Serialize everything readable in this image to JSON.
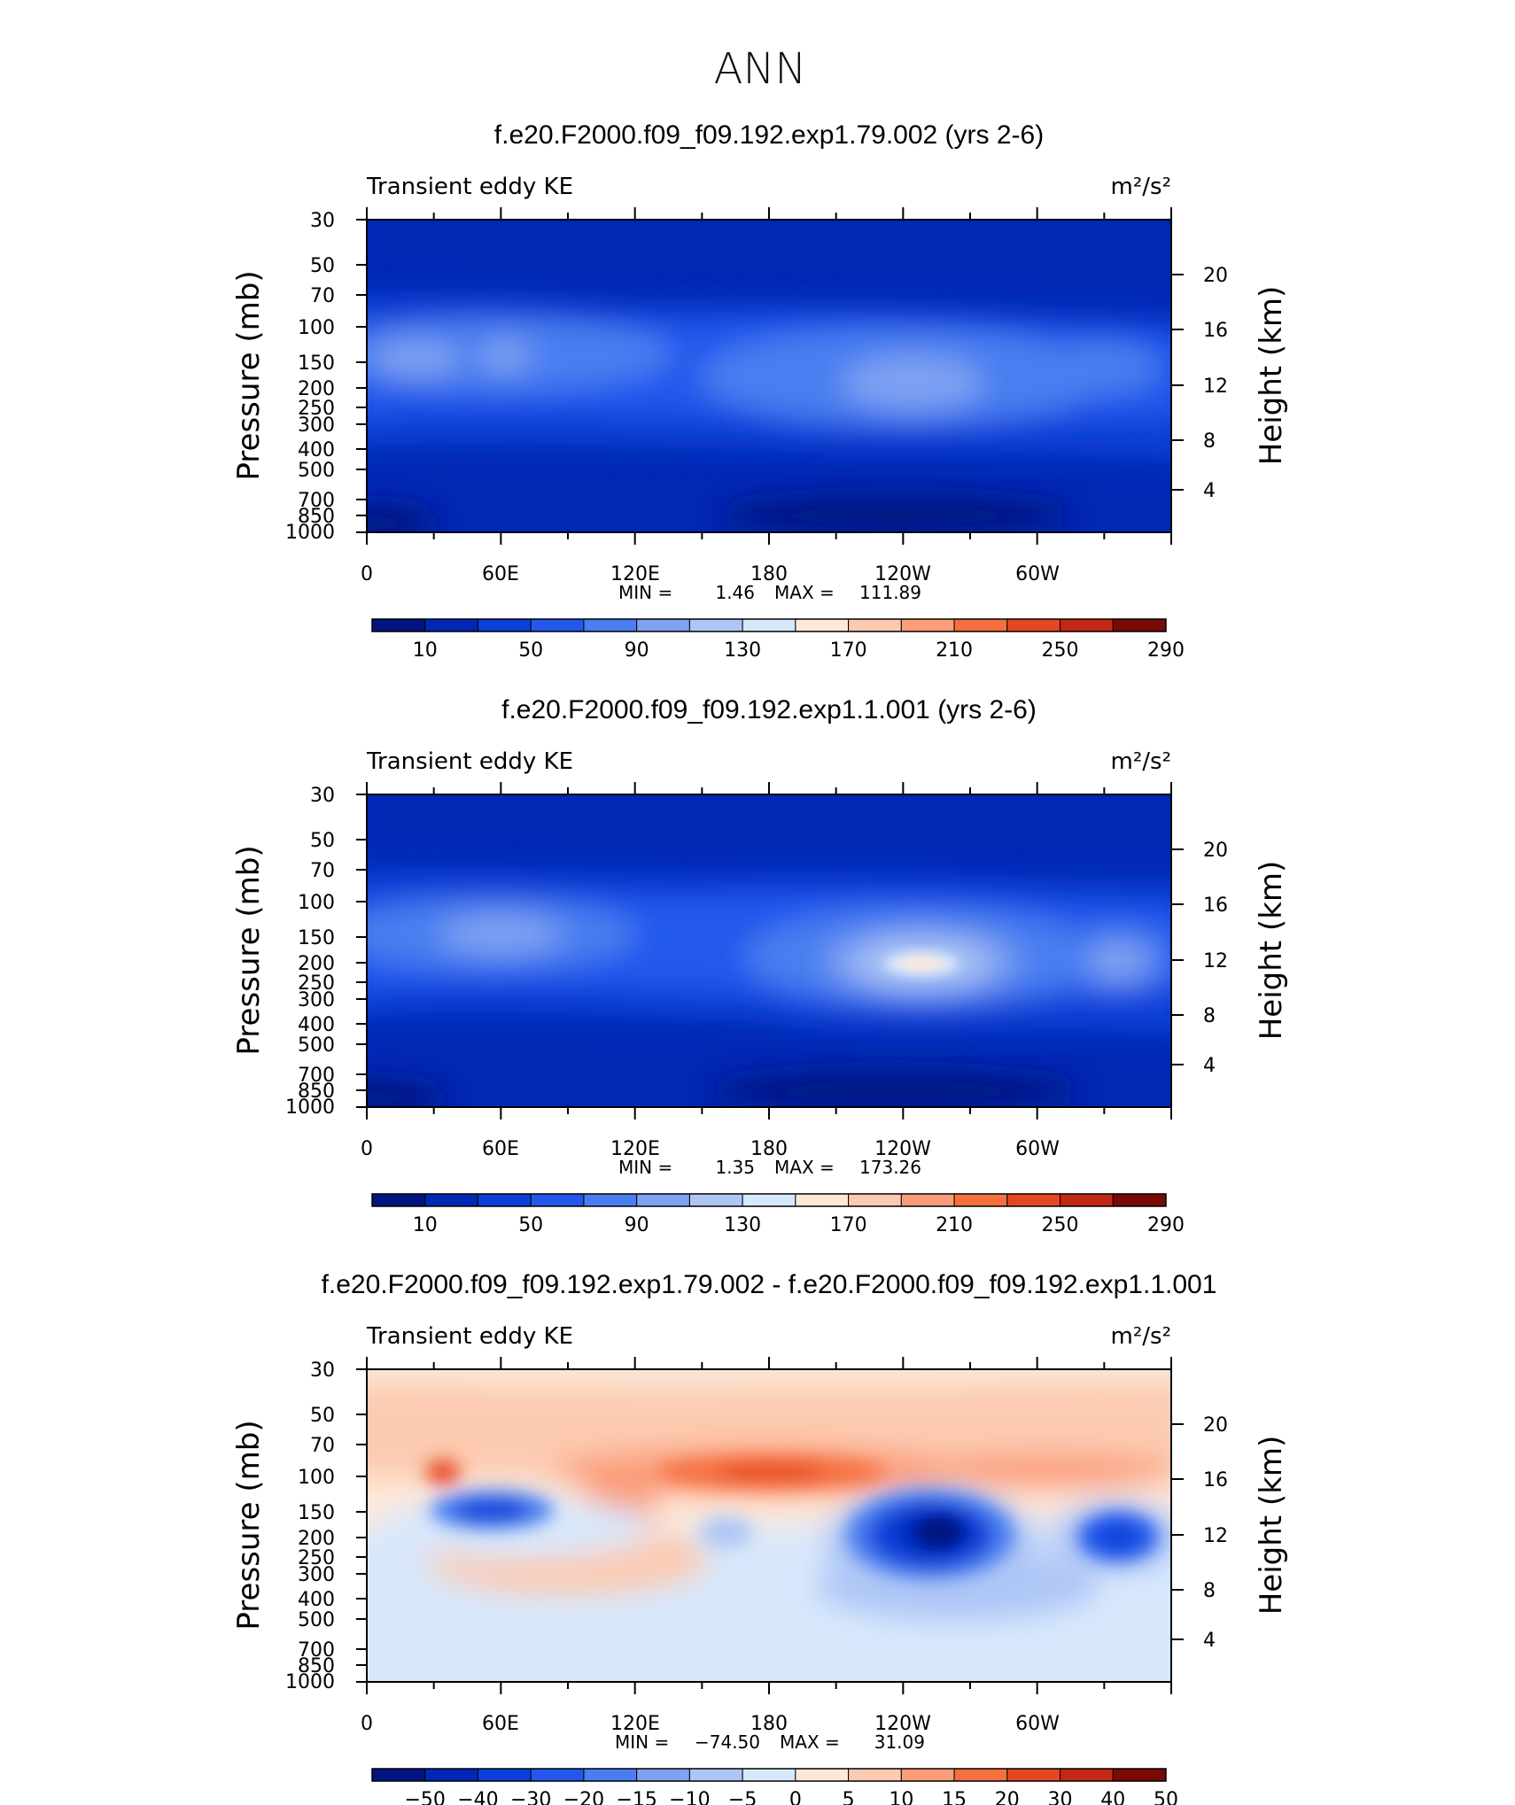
{
  "page_title": "ANN",
  "chart_data": [
    {
      "type": "heatmap",
      "title": "f.e20.F2000.f09_f09.192.exp1.79.002 (yrs 2-6)",
      "left_label": "Transient eddy KE",
      "units": "m²/s²",
      "ylabel": "Pressure (mb)",
      "ylabel_right": "Height (km)",
      "x_ticks": [
        "0",
        "60E",
        "120E",
        "180",
        "120W",
        "60W"
      ],
      "y_ticks": [
        "30",
        "50",
        "70",
        "100",
        "150",
        "200",
        "250",
        "300",
        "400",
        "500",
        "700",
        "850",
        "1000"
      ],
      "y_ticks_right": [
        "20",
        "16",
        "12",
        "8",
        "4"
      ],
      "stats": {
        "min_label": "MIN =",
        "min": "1.46",
        "max_label": "MAX =",
        "max": "111.89"
      },
      "colorbar": {
        "colors": [
          "#001580",
          "#0028b4",
          "#0c40d8",
          "#2458ec",
          "#4a7ef0",
          "#7fa2f2",
          "#aec6f6",
          "#d8e8fc",
          "#fee9d8",
          "#fccab0",
          "#fb9d79",
          "#f4703f",
          "#e54820",
          "#c32814",
          "#7a0a05"
        ],
        "labels": [
          "10",
          "50",
          "90",
          "130",
          "170",
          "210",
          "250",
          "290"
        ]
      }
    },
    {
      "type": "heatmap",
      "title": "f.e20.F2000.f09_f09.192.exp1.1.001 (yrs 2-6)",
      "left_label": "Transient eddy KE",
      "units": "m²/s²",
      "ylabel": "Pressure (mb)",
      "ylabel_right": "Height (km)",
      "x_ticks": [
        "0",
        "60E",
        "120E",
        "180",
        "120W",
        "60W"
      ],
      "y_ticks": [
        "30",
        "50",
        "70",
        "100",
        "150",
        "200",
        "250",
        "300",
        "400",
        "500",
        "700",
        "850",
        "1000"
      ],
      "y_ticks_right": [
        "20",
        "16",
        "12",
        "8",
        "4"
      ],
      "stats": {
        "min_label": "MIN =",
        "min": "1.35",
        "max_label": "MAX =",
        "max": "173.26"
      },
      "colorbar": {
        "colors": [
          "#001580",
          "#0028b4",
          "#0c40d8",
          "#2458ec",
          "#4a7ef0",
          "#7fa2f2",
          "#aec6f6",
          "#d8e8fc",
          "#fee9d8",
          "#fccab0",
          "#fb9d79",
          "#f4703f",
          "#e54820",
          "#c32814",
          "#7a0a05"
        ],
        "labels": [
          "10",
          "50",
          "90",
          "130",
          "170",
          "210",
          "250",
          "290"
        ]
      }
    },
    {
      "type": "heatmap",
      "title": "f.e20.F2000.f09_f09.192.exp1.79.002 - f.e20.F2000.f09_f09.192.exp1.1.001",
      "left_label": "Transient eddy KE",
      "units": "m²/s²",
      "ylabel": "Pressure (mb)",
      "ylabel_right": "Height (km)",
      "x_ticks": [
        "0",
        "60E",
        "120E",
        "180",
        "120W",
        "60W"
      ],
      "y_ticks": [
        "30",
        "50",
        "70",
        "100",
        "150",
        "200",
        "250",
        "300",
        "400",
        "500",
        "700",
        "850",
        "1000"
      ],
      "y_ticks_right": [
        "20",
        "16",
        "12",
        "8",
        "4"
      ],
      "stats": {
        "min_label": "MIN =",
        "min": "−74.50",
        "max_label": "MAX =",
        "max": "31.09"
      },
      "colorbar": {
        "colors": [
          "#001580",
          "#0028b4",
          "#0c40d8",
          "#2458ec",
          "#4a7ef0",
          "#7fa2f2",
          "#aec6f6",
          "#d8e8fc",
          "#fee9d8",
          "#fccab0",
          "#fb9d79",
          "#f4703f",
          "#e54820",
          "#c32814",
          "#7a0a05"
        ],
        "labels": [
          "−50",
          "−40",
          "−30",
          "−20",
          "−15",
          "−10",
          "−5",
          "0",
          "5",
          "10",
          "15",
          "20",
          "30",
          "40",
          "50"
        ]
      }
    }
  ]
}
